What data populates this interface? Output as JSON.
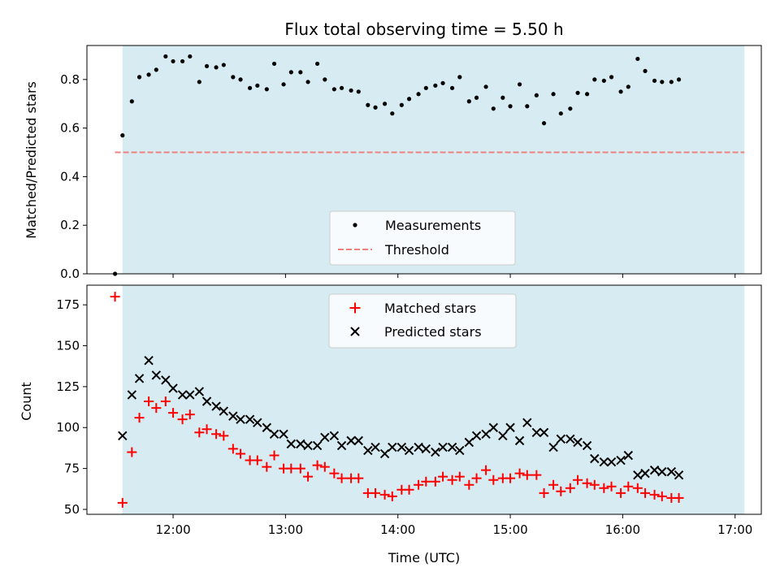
{
  "chart_data": {
    "title": "Flux total observing time = 5.50 h",
    "x_axis": {
      "label": "Time (UTC)",
      "ticks": [
        "12:00",
        "13:00",
        "14:00",
        "15:00",
        "16:00",
        "17:00"
      ],
      "range": [
        "11:14",
        "17:14"
      ]
    },
    "observing_window": [
      "11:33",
      "17:05"
    ],
    "colors": {
      "window": "#add8e6",
      "threshold": "#f08080",
      "matched": "#ff0000",
      "predicted": "#000000",
      "measurement": "#000000"
    },
    "panels": [
      {
        "type": "scatter",
        "ylabel": "Matched/Predicted stars",
        "ylim": [
          0,
          0.94
        ],
        "yticks": [
          "0.0",
          "0.2",
          "0.4",
          "0.6",
          "0.8"
        ],
        "legend_position": "lower center",
        "threshold": {
          "name": "Threshold",
          "value": 0.5,
          "x_start": "11:29",
          "x_end": "17:05",
          "style": "dashed"
        },
        "series": [
          {
            "name": "Measurements",
            "marker": "dot",
            "points": [
              [
                "11:29",
                0.0
              ],
              [
                "11:33",
                0.57
              ],
              [
                "11:38",
                0.71
              ],
              [
                "11:42",
                0.81
              ],
              [
                "11:47",
                0.82
              ],
              [
                "11:51",
                0.84
              ],
              [
                "11:56",
                0.895
              ],
              [
                "12:00",
                0.875
              ],
              [
                "12:05",
                0.875
              ],
              [
                "12:09",
                0.895
              ],
              [
                "12:14",
                0.79
              ],
              [
                "12:18",
                0.855
              ],
              [
                "12:23",
                0.85
              ],
              [
                "12:27",
                0.86
              ],
              [
                "12:32",
                0.81
              ],
              [
                "12:36",
                0.8
              ],
              [
                "12:41",
                0.765
              ],
              [
                "12:45",
                0.775
              ],
              [
                "12:50",
                0.76
              ],
              [
                "12:54",
                0.865
              ],
              [
                "12:59",
                0.78
              ],
              [
                "13:03",
                0.83
              ],
              [
                "13:08",
                0.83
              ],
              [
                "13:12",
                0.79
              ],
              [
                "13:17",
                0.865
              ],
              [
                "13:21",
                0.8
              ],
              [
                "13:26",
                0.76
              ],
              [
                "13:30",
                0.765
              ],
              [
                "13:35",
                0.755
              ],
              [
                "13:39",
                0.75
              ],
              [
                "13:44",
                0.695
              ],
              [
                "13:48",
                0.685
              ],
              [
                "13:53",
                0.7
              ],
              [
                "13:57",
                0.66
              ],
              [
                "14:02",
                0.695
              ],
              [
                "14:06",
                0.72
              ],
              [
                "14:11",
                0.74
              ],
              [
                "14:15",
                0.765
              ],
              [
                "14:20",
                0.775
              ],
              [
                "14:24",
                0.785
              ],
              [
                "14:29",
                0.765
              ],
              [
                "14:33",
                0.81
              ],
              [
                "14:38",
                0.71
              ],
              [
                "14:42",
                0.725
              ],
              [
                "14:47",
                0.77
              ],
              [
                "14:51",
                0.68
              ],
              [
                "14:56",
                0.725
              ],
              [
                "15:00",
                0.69
              ],
              [
                "15:05",
                0.78
              ],
              [
                "15:09",
                0.69
              ],
              [
                "15:14",
                0.735
              ],
              [
                "15:18",
                0.62
              ],
              [
                "15:23",
                0.74
              ],
              [
                "15:27",
                0.66
              ],
              [
                "15:32",
                0.68
              ],
              [
                "15:36",
                0.745
              ],
              [
                "15:41",
                0.74
              ],
              [
                "15:45",
                0.8
              ],
              [
                "15:50",
                0.795
              ],
              [
                "15:54",
                0.81
              ],
              [
                "15:59",
                0.75
              ],
              [
                "16:03",
                0.77
              ],
              [
                "16:08",
                0.885
              ],
              [
                "16:12",
                0.835
              ],
              [
                "16:17",
                0.795
              ],
              [
                "16:21",
                0.79
              ],
              [
                "16:26",
                0.79
              ],
              [
                "16:30",
                0.8
              ]
            ]
          }
        ]
      },
      {
        "type": "scatter",
        "ylabel": "Count",
        "ylim": [
          47,
          187
        ],
        "yticks": [
          "50",
          "75",
          "100",
          "125",
          "150",
          "175"
        ],
        "legend_position": "upper center",
        "series": [
          {
            "name": "Matched stars",
            "marker": "plus",
            "points": [
              [
                "11:29",
                180
              ],
              [
                "11:33",
                54
              ],
              [
                "11:38",
                85
              ],
              [
                "11:42",
                106
              ],
              [
                "11:47",
                116
              ],
              [
                "11:51",
                112
              ],
              [
                "11:56",
                116
              ],
              [
                "12:00",
                109
              ],
              [
                "12:05",
                105
              ],
              [
                "12:09",
                108
              ],
              [
                "12:14",
                97
              ],
              [
                "12:18",
                99
              ],
              [
                "12:23",
                96
              ],
              [
                "12:27",
                95
              ],
              [
                "12:32",
                87
              ],
              [
                "12:36",
                84
              ],
              [
                "12:41",
                80
              ],
              [
                "12:45",
                80
              ],
              [
                "12:50",
                76
              ],
              [
                "12:54",
                83
              ],
              [
                "12:59",
                75
              ],
              [
                "13:03",
                75
              ],
              [
                "13:08",
                75
              ],
              [
                "13:12",
                70
              ],
              [
                "13:17",
                77
              ],
              [
                "13:21",
                76
              ],
              [
                "13:26",
                72
              ],
              [
                "13:30",
                69
              ],
              [
                "13:35",
                69
              ],
              [
                "13:39",
                69
              ],
              [
                "13:44",
                60
              ],
              [
                "13:48",
                60
              ],
              [
                "13:53",
                59
              ],
              [
                "13:57",
                58
              ],
              [
                "14:02",
                62
              ],
              [
                "14:06",
                62
              ],
              [
                "14:11",
                65
              ],
              [
                "14:15",
                67
              ],
              [
                "14:20",
                67
              ],
              [
                "14:24",
                70
              ],
              [
                "14:29",
                68
              ],
              [
                "14:33",
                70
              ],
              [
                "14:38",
                65
              ],
              [
                "14:42",
                69
              ],
              [
                "14:47",
                74
              ],
              [
                "14:51",
                68
              ],
              [
                "14:56",
                69
              ],
              [
                "15:00",
                69
              ],
              [
                "15:05",
                72
              ],
              [
                "15:09",
                71
              ],
              [
                "15:14",
                71
              ],
              [
                "15:18",
                60
              ],
              [
                "15:23",
                65
              ],
              [
                "15:27",
                61
              ],
              [
                "15:32",
                63
              ],
              [
                "15:36",
                68
              ],
              [
                "15:41",
                66
              ],
              [
                "15:45",
                65
              ],
              [
                "15:50",
                63
              ],
              [
                "15:54",
                64
              ],
              [
                "15:59",
                60
              ],
              [
                "16:03",
                64
              ],
              [
                "16:08",
                63
              ],
              [
                "16:12",
                60
              ],
              [
                "16:17",
                59
              ],
              [
                "16:21",
                58
              ],
              [
                "16:26",
                57
              ],
              [
                "16:30",
                57
              ]
            ]
          },
          {
            "name": "Predicted stars",
            "marker": "x",
            "points": [
              [
                "11:33",
                95
              ],
              [
                "11:38",
                120
              ],
              [
                "11:42",
                130
              ],
              [
                "11:47",
                141
              ],
              [
                "11:51",
                132
              ],
              [
                "11:56",
                129
              ],
              [
                "12:00",
                124
              ],
              [
                "12:05",
                120
              ],
              [
                "12:09",
                120
              ],
              [
                "12:14",
                122
              ],
              [
                "12:18",
                116
              ],
              [
                "12:23",
                113
              ],
              [
                "12:27",
                110
              ],
              [
                "12:32",
                107
              ],
              [
                "12:36",
                105
              ],
              [
                "12:41",
                105
              ],
              [
                "12:45",
                103
              ],
              [
                "12:50",
                100
              ],
              [
                "12:54",
                96
              ],
              [
                "12:59",
                96
              ],
              [
                "13:03",
                90
              ],
              [
                "13:08",
                90
              ],
              [
                "13:12",
                89
              ],
              [
                "13:17",
                89
              ],
              [
                "13:21",
                94
              ],
              [
                "13:26",
                95
              ],
              [
                "13:30",
                89
              ],
              [
                "13:35",
                92
              ],
              [
                "13:39",
                92
              ],
              [
                "13:44",
                86
              ],
              [
                "13:48",
                88
              ],
              [
                "13:53",
                84
              ],
              [
                "13:57",
                88
              ],
              [
                "14:02",
                88
              ],
              [
                "14:06",
                86
              ],
              [
                "14:11",
                88
              ],
              [
                "14:15",
                87
              ],
              [
                "14:20",
                85
              ],
              [
                "14:24",
                88
              ],
              [
                "14:29",
                88
              ],
              [
                "14:33",
                86
              ],
              [
                "14:38",
                91
              ],
              [
                "14:42",
                95
              ],
              [
                "14:47",
                96
              ],
              [
                "14:51",
                100
              ],
              [
                "14:56",
                95
              ],
              [
                "15:00",
                100
              ],
              [
                "15:05",
                92
              ],
              [
                "15:09",
                103
              ],
              [
                "15:14",
                97
              ],
              [
                "15:18",
                97
              ],
              [
                "15:23",
                88
              ],
              [
                "15:27",
                93
              ],
              [
                "15:32",
                93
              ],
              [
                "15:36",
                91
              ],
              [
                "15:41",
                89
              ],
              [
                "15:45",
                81
              ],
              [
                "15:50",
                79
              ],
              [
                "15:54",
                79
              ],
              [
                "15:59",
                80
              ],
              [
                "16:03",
                83
              ],
              [
                "16:08",
                71
              ],
              [
                "16:12",
                72
              ],
              [
                "16:17",
                74
              ],
              [
                "16:21",
                73
              ],
              [
                "16:26",
                73
              ],
              [
                "16:30",
                71
              ]
            ]
          }
        ]
      }
    ]
  }
}
